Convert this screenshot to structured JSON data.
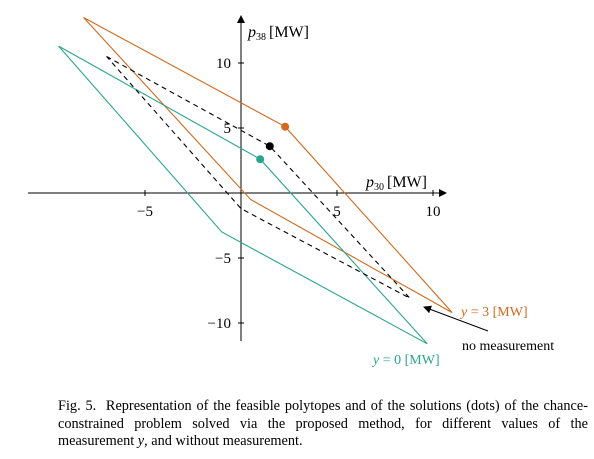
{
  "chart_data": {
    "type": "line",
    "xlabel_var": "p",
    "xlabel_sub": "30",
    "xlabel_unit": "[MW]",
    "ylabel_var": "p",
    "ylabel_sub": "38",
    "ylabel_unit": "[MW]",
    "x_ticks": [
      -5,
      5,
      10
    ],
    "y_ticks": [
      10,
      5,
      -5,
      -10
    ],
    "x_tick_labels": [
      "−5",
      "5",
      "10"
    ],
    "y_tick_labels": [
      "10",
      "5",
      "−5",
      "−10"
    ],
    "xlim": [
      -9.5,
      11
    ],
    "ylim": [
      -11.5,
      13.5
    ],
    "grid": false,
    "series": [
      {
        "name": "y = 3 [MW]",
        "color": "#d2691e",
        "style": "solid",
        "polygon": [
          [
            -8.2,
            13.5
          ],
          [
            2.3,
            5.1
          ],
          [
            11.0,
            -9.2
          ],
          [
            0.5,
            -0.5
          ]
        ],
        "dot": [
          2.3,
          5.1
        ]
      },
      {
        "name": "y = 0 [MW]",
        "color": "#2aa58c",
        "style": "solid",
        "polygon": [
          [
            -9.5,
            11.3
          ],
          [
            1.0,
            2.6
          ],
          [
            9.7,
            -11.6
          ],
          [
            -1.0,
            -3.0
          ]
        ],
        "dot": [
          1.0,
          2.6
        ]
      },
      {
        "name": "no measurement",
        "color": "#000000",
        "style": "dashed",
        "polygon": [
          [
            -7.0,
            10.5
          ],
          [
            1.5,
            3.6
          ],
          [
            8.8,
            -8.1
          ],
          [
            0.0,
            -1.2
          ]
        ],
        "dot": [
          1.5,
          3.6
        ]
      }
    ],
    "annotations": {
      "y3_label": "y = 3 [MW]",
      "y0_label": "y = 0 [MW]",
      "no_measurement_label": "no measurement"
    }
  },
  "caption": {
    "prefix": "Fig. 5.",
    "text_1": "Representation of the feasible polytopes and of the solutions (dots) of the chance-constrained problem solved via the proposed method, for different values of the measurement ",
    "var": "y",
    "text_2": ", and without measurement."
  }
}
